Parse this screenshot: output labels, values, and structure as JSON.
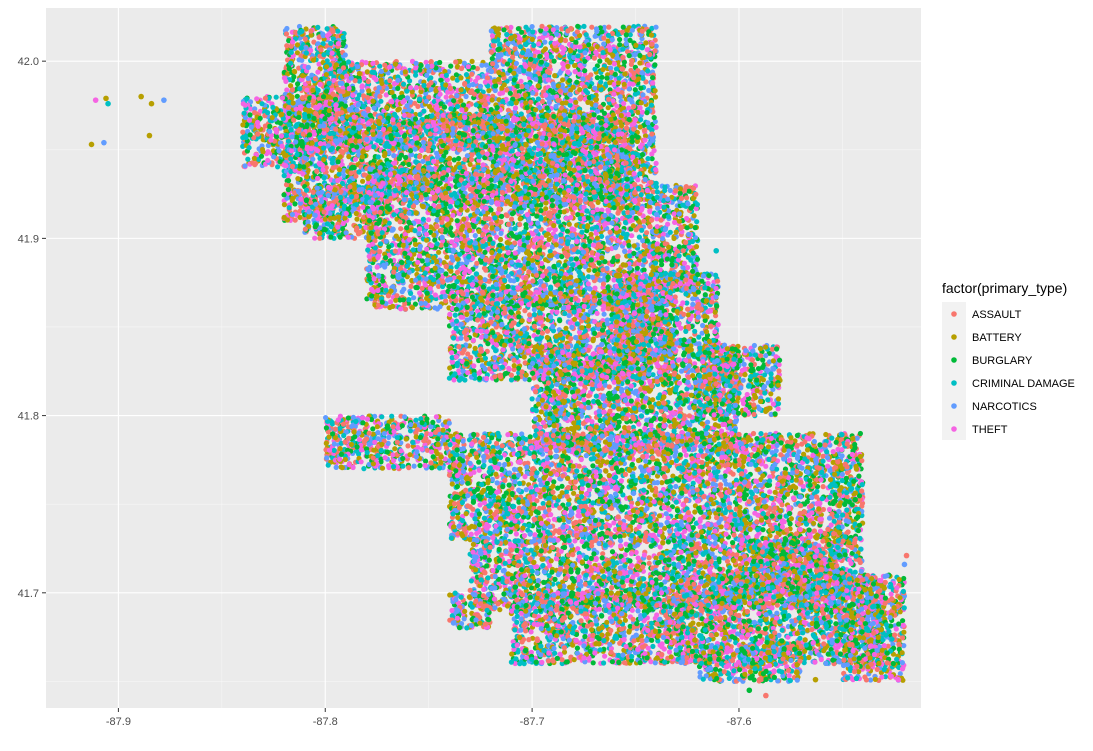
{
  "chart_data": {
    "type": "scatter",
    "title": "",
    "xlabel": "",
    "ylabel": "",
    "xlim": [
      -87.935,
      -87.512
    ],
    "ylim": [
      41.635,
      42.03
    ],
    "x_ticks": [
      -87.9,
      -87.8,
      -87.7,
      -87.6
    ],
    "x_tick_labels": [
      "-87.9",
      "-87.8",
      "-87.7",
      "-87.6"
    ],
    "y_ticks": [
      41.7,
      41.8,
      41.9,
      42.0
    ],
    "y_tick_labels": [
      "41.7",
      "41.8",
      "41.9",
      "42.0"
    ],
    "grid": true,
    "legend": {
      "title": "factor(primary_type)",
      "position": "right"
    },
    "series": [
      {
        "name": "ASSAULT",
        "color": "#F8766D"
      },
      {
        "name": "BATTERY",
        "color": "#B79F00"
      },
      {
        "name": "BURGLARY",
        "color": "#00BA38"
      },
      {
        "name": "CRIMINAL DAMAGE",
        "color": "#00BFC4"
      },
      {
        "name": "NARCOTICS",
        "color": "#619CFF"
      },
      {
        "name": "THEFT",
        "color": "#F564E3"
      }
    ],
    "outlier_points": [
      {
        "x": -87.913,
        "y": 41.953,
        "series": "BATTERY"
      },
      {
        "x": -87.907,
        "y": 41.954,
        "series": "NARCOTICS"
      },
      {
        "x": -87.911,
        "y": 41.978,
        "series": "THEFT"
      },
      {
        "x": -87.906,
        "y": 41.979,
        "series": "BATTERY"
      },
      {
        "x": -87.905,
        "y": 41.976,
        "series": "CRIMINAL DAMAGE"
      },
      {
        "x": -87.889,
        "y": 41.98,
        "series": "BATTERY"
      },
      {
        "x": -87.884,
        "y": 41.976,
        "series": "BATTERY"
      },
      {
        "x": -87.878,
        "y": 41.978,
        "series": "NARCOTICS"
      },
      {
        "x": -87.885,
        "y": 41.958,
        "series": "BATTERY"
      },
      {
        "x": -87.611,
        "y": 41.893,
        "series": "CRIMINAL DAMAGE"
      },
      {
        "x": -87.738,
        "y": 41.683,
        "series": "NARCOTICS"
      },
      {
        "x": -87.576,
        "y": 41.687,
        "series": "CRIMINAL DAMAGE"
      },
      {
        "x": -87.572,
        "y": 41.655,
        "series": "BATTERY"
      },
      {
        "x": -87.563,
        "y": 41.651,
        "series": "BATTERY"
      },
      {
        "x": -87.523,
        "y": 41.651,
        "series": "THEFT"
      },
      {
        "x": -87.519,
        "y": 41.721,
        "series": "ASSAULT"
      },
      {
        "x": -87.52,
        "y": 41.716,
        "series": "NARCOTICS"
      },
      {
        "x": -87.587,
        "y": 41.642,
        "series": "ASSAULT"
      },
      {
        "x": -87.595,
        "y": 41.645,
        "series": "BURGLARY"
      }
    ]
  }
}
